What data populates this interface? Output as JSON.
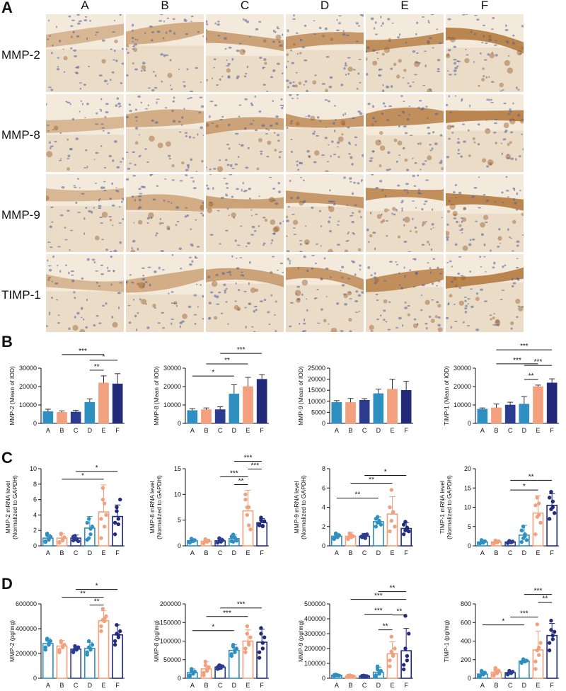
{
  "panels": {
    "A": "A",
    "B": "B",
    "C": "C",
    "D": "D"
  },
  "micrograph_grid": {
    "columns": [
      "A",
      "B",
      "C",
      "D",
      "E",
      "F"
    ],
    "rows": [
      "MMP-2",
      "MMP-8",
      "MMP-9",
      "TIMP-1"
    ]
  },
  "colors": {
    "A": "#2f8fc0",
    "B": "#f2a07d",
    "C": "#2b3c8f",
    "D": "#2f8fc0",
    "E": "#f2a07d",
    "F": "#232a7a",
    "tissue_bg": "#f3eadb",
    "epithelium": "#b57a3f",
    "nuclei": "#4e5f9a"
  },
  "chart_data": [
    {
      "type": "bar",
      "panel": "B",
      "ylabel": "MMP-2 (Mean of IOD)",
      "categories": [
        "A",
        "B",
        "C",
        "D",
        "E",
        "F"
      ],
      "ylim": [
        0,
        30000
      ],
      "yticks": [
        0,
        10000,
        20000,
        30000
      ],
      "values": [
        6500,
        6000,
        6200,
        11500,
        22000,
        21500
      ],
      "errors": [
        1200,
        800,
        900,
        1800,
        3800,
        5500
      ],
      "scatter": false,
      "significance": [
        {
          "from": "D",
          "to": "E",
          "label": "**"
        },
        {
          "from": "D",
          "to": "F",
          "label": "*"
        },
        {
          "from": "B",
          "to": "E",
          "label": "***"
        }
      ]
    },
    {
      "type": "bar",
      "panel": "B",
      "ylabel": "MMP-8 (Mean of IOD)",
      "categories": [
        "A",
        "B",
        "C",
        "D",
        "E",
        "F"
      ],
      "ylim": [
        0,
        30000
      ],
      "yticks": [
        0,
        10000,
        20000,
        30000
      ],
      "values": [
        7000,
        7500,
        7500,
        16000,
        20000,
        24000
      ],
      "errors": [
        1000,
        900,
        1500,
        5000,
        5000,
        2500
      ],
      "scatter": false,
      "significance": [
        {
          "from": "A",
          "to": "D",
          "label": "*"
        },
        {
          "from": "B",
          "to": "E",
          "label": "**"
        },
        {
          "from": "C",
          "to": "F",
          "label": "***"
        }
      ]
    },
    {
      "type": "bar",
      "panel": "B",
      "ylabel": "MMP-9 (Mean of IOD)",
      "categories": [
        "A",
        "B",
        "C",
        "D",
        "E",
        "F"
      ],
      "ylim": [
        0,
        25000
      ],
      "yticks": [
        0,
        5000,
        10000,
        15000,
        20000,
        25000
      ],
      "values": [
        9500,
        9500,
        10500,
        13500,
        15500,
        15000
      ],
      "errors": [
        800,
        1800,
        700,
        2000,
        4500,
        4000
      ],
      "scatter": false,
      "significance": []
    },
    {
      "type": "bar",
      "panel": "B",
      "ylabel": "TIMP-1 (Mean of IOD)",
      "categories": [
        "A",
        "B",
        "C",
        "D",
        "E",
        "F"
      ],
      "ylim": [
        0,
        30000
      ],
      "yticks": [
        0,
        10000,
        20000,
        30000
      ],
      "values": [
        7800,
        8500,
        10000,
        10500,
        20000,
        22000
      ],
      "errors": [
        600,
        2000,
        1500,
        4000,
        800,
        2200
      ],
      "scatter": false,
      "significance": [
        {
          "from": "D",
          "to": "E",
          "label": "**"
        },
        {
          "from": "D",
          "to": "F",
          "label": "***"
        },
        {
          "from": "B",
          "to": "E",
          "label": "***"
        },
        {
          "from": "B",
          "to": "F",
          "label": "***"
        }
      ]
    },
    {
      "type": "bar",
      "panel": "C",
      "ylabel": "MMP-2 mRNA level\n(Normalized to GAPDH)",
      "categories": [
        "A",
        "B",
        "C",
        "D",
        "E",
        "F"
      ],
      "ylim": [
        0,
        10
      ],
      "yticks": [
        0,
        2,
        4,
        6,
        8,
        10
      ],
      "values": [
        1.0,
        1.0,
        1.0,
        2.3,
        4.4,
        3.8
      ],
      "errors": [
        0.5,
        0.6,
        0.4,
        1.5,
        3.5,
        1.5
      ],
      "scatter": true,
      "points": [
        [
          0.6,
          1.4,
          0.9,
          1.2,
          0.5,
          1.6,
          0.8
        ],
        [
          0.5,
          1.5,
          0.7,
          1.1,
          0.4,
          1.6,
          0.9
        ],
        [
          0.7,
          1.3,
          0.9,
          0.6,
          1.2,
          1.0,
          0.8
        ],
        [
          0.8,
          3.5,
          1.5,
          2.5,
          3.0,
          1.0,
          2.2
        ],
        [
          1.0,
          7.5,
          2.5,
          4.0,
          3.5,
          6.0,
          5.5
        ],
        [
          1.5,
          5.0,
          3.5,
          6.0,
          3.0,
          4.5,
          2.8
        ]
      ],
      "significance": [
        {
          "from": "B",
          "to": "E",
          "label": "*"
        },
        {
          "from": "C",
          "to": "F",
          "label": "*"
        }
      ]
    },
    {
      "type": "bar",
      "panel": "C",
      "ylabel": "MMP-8 mRNA level\n(Normalized to GAPDH)",
      "categories": [
        "A",
        "B",
        "C",
        "D",
        "E",
        "F"
      ],
      "ylim": [
        0,
        15
      ],
      "yticks": [
        0,
        5,
        10,
        15
      ],
      "values": [
        1.0,
        0.9,
        1.0,
        1.4,
        6.8,
        4.5
      ],
      "errors": [
        0.4,
        0.4,
        0.5,
        0.7,
        4.0,
        0.8
      ],
      "scatter": true,
      "points": [
        [
          0.7,
          1.3,
          0.9,
          1.1,
          0.6,
          1.4,
          1.0
        ],
        [
          0.5,
          1.3,
          0.8,
          1.0,
          0.6,
          1.2,
          0.9
        ],
        [
          0.7,
          1.4,
          0.8,
          1.1,
          0.6,
          1.5,
          0.9
        ],
        [
          0.9,
          2.2,
          1.5,
          1.0,
          1.8,
          0.8,
          1.6
        ],
        [
          10.0,
          7.5,
          4.0,
          3.2,
          9.0,
          6.0,
          7.5
        ],
        [
          4.0,
          5.5,
          3.8,
          4.8,
          4.2,
          5.0,
          3.9
        ]
      ],
      "significance": [
        {
          "from": "D",
          "to": "E",
          "label": "**"
        },
        {
          "from": "C",
          "to": "E",
          "label": "***"
        },
        {
          "from": "E",
          "to": "F",
          "label": "***"
        },
        {
          "from": "D",
          "to": "F",
          "label": "***"
        }
      ]
    },
    {
      "type": "bar",
      "panel": "C",
      "ylabel": "MMP-9 mRNA level\n(Normalized to GAPDH)",
      "categories": [
        "A",
        "B",
        "C",
        "D",
        "E",
        "F"
      ],
      "ylim": [
        0,
        8
      ],
      "yticks": [
        0,
        2,
        4,
        6,
        8
      ],
      "values": [
        1.0,
        1.0,
        1.0,
        2.5,
        3.3,
        1.8
      ],
      "errors": [
        0.3,
        0.4,
        0.3,
        0.5,
        1.8,
        0.6
      ],
      "scatter": true,
      "points": [
        [
          0.7,
          1.2,
          0.9,
          1.1,
          0.8,
          1.3,
          0.9
        ],
        [
          0.8,
          1.3,
          0.9,
          1.0,
          0.7,
          1.2,
          1.1
        ],
        [
          0.9,
          1.1,
          0.8,
          1.2,
          1.0,
          0.9,
          1.1
        ],
        [
          2.0,
          3.0,
          2.5,
          2.2,
          2.8,
          2.4,
          2.6
        ],
        [
          1.5,
          5.8,
          3.5,
          2.0,
          4.0,
          2.6,
          3.5
        ],
        [
          1.2,
          2.5,
          1.8,
          1.5,
          2.2,
          1.6,
          1.9
        ]
      ],
      "significance": [
        {
          "from": "A",
          "to": "D",
          "label": "**"
        },
        {
          "from": "B",
          "to": "E",
          "label": "**"
        },
        {
          "from": "C",
          "to": "F",
          "label": "*"
        }
      ]
    },
    {
      "type": "bar",
      "panel": "C",
      "ylabel": "TIMP-1 mRNA level\n(Normalized to GAPDH)",
      "categories": [
        "A",
        "B",
        "C",
        "D",
        "E",
        "F"
      ],
      "ylim": [
        0,
        20
      ],
      "yticks": [
        0,
        5,
        10,
        15,
        20
      ],
      "values": [
        1.0,
        1.0,
        1.0,
        2.8,
        8.5,
        10.5
      ],
      "errors": [
        0.5,
        0.5,
        0.4,
        2.5,
        4.5,
        3.0
      ],
      "scatter": true,
      "points": [
        [
          0.6,
          1.4,
          0.8,
          1.2,
          0.7,
          1.5,
          0.9
        ],
        [
          0.7,
          1.3,
          0.9,
          1.2,
          0.6,
          1.4,
          0.9
        ],
        [
          0.8,
          1.2,
          0.9,
          1.1,
          0.7,
          1.3,
          1.0
        ],
        [
          1.0,
          5.0,
          2.5,
          1.5,
          4.0,
          2.0,
          3.0
        ],
        [
          3.0,
          12.5,
          8.0,
          6.0,
          10.5,
          7.5,
          11.0
        ],
        [
          7.0,
          14.0,
          10.0,
          8.5,
          12.5,
          9.5,
          11.5
        ]
      ],
      "significance": [
        {
          "from": "C",
          "to": "E",
          "label": "*"
        },
        {
          "from": "C",
          "to": "F",
          "label": "**"
        }
      ]
    },
    {
      "type": "bar",
      "panel": "D",
      "ylabel": "MMP-2 (pg/mg)",
      "categories": [
        "A",
        "B",
        "C",
        "D",
        "E",
        "F"
      ],
      "ylim": [
        0,
        600000
      ],
      "yticks": [
        0,
        200000,
        400000,
        600000
      ],
      "values": [
        280000,
        260000,
        235000,
        240000,
        465000,
        350000
      ],
      "errors": [
        40000,
        45000,
        25000,
        50000,
        80000,
        80000
      ],
      "scatter": true,
      "points": [
        [
          230000,
          320000,
          270000,
          300000,
          250000,
          310000,
          280000
        ],
        [
          210000,
          300000,
          250000,
          270000,
          230000,
          290000,
          260000
        ],
        [
          210000,
          260000,
          230000,
          250000,
          220000,
          240000,
          245000
        ],
        [
          190000,
          300000,
          230000,
          270000,
          210000,
          250000,
          240000
        ],
        [
          380000,
          560000,
          460000,
          500000,
          420000,
          470000,
          480000
        ],
        [
          270000,
          430000,
          330000,
          380000,
          300000,
          360000,
          350000
        ]
      ],
      "significance": [
        {
          "from": "D",
          "to": "E",
          "label": "**"
        },
        {
          "from": "B",
          "to": "E",
          "label": "**"
        },
        {
          "from": "C",
          "to": "F",
          "label": "*"
        }
      ]
    },
    {
      "type": "bar",
      "panel": "D",
      "ylabel": "MMP-8 (pg/mg)",
      "categories": [
        "A",
        "B",
        "C",
        "D",
        "E",
        "F"
      ],
      "ylim": [
        0,
        200000
      ],
      "yticks": [
        0,
        50000,
        100000,
        150000,
        200000
      ],
      "values": [
        15000,
        25000,
        30000,
        75000,
        100000,
        97000
      ],
      "errors": [
        10000,
        20000,
        5000,
        15000,
        30000,
        35000
      ],
      "scatter": true,
      "points": [
        [
          5000,
          25000,
          12000,
          18000,
          8000,
          20000,
          15000
        ],
        [
          8000,
          45000,
          20000,
          30000,
          15000,
          35000,
          25000
        ],
        [
          25000,
          35000,
          28000,
          32000,
          30000,
          27000,
          33000
        ],
        [
          60000,
          90000,
          70000,
          80000,
          65000,
          85000,
          75000
        ],
        [
          70000,
          140000,
          90000,
          110000,
          80000,
          120000,
          95000
        ],
        [
          55000,
          135000,
          80000,
          110000,
          70000,
          120000,
          95000
        ]
      ],
      "significance": [
        {
          "from": "A",
          "to": "D",
          "label": "*"
        },
        {
          "from": "B",
          "to": "E",
          "label": "***"
        },
        {
          "from": "C",
          "to": "F",
          "label": "***"
        }
      ]
    },
    {
      "type": "bar",
      "panel": "D",
      "ylabel": "MMP-9 (pg/mg)",
      "categories": [
        "A",
        "B",
        "C",
        "D",
        "E",
        "F"
      ],
      "ylim": [
        0,
        500000
      ],
      "yticks": [
        0,
        100000,
        200000,
        300000,
        400000,
        500000
      ],
      "values": [
        20000,
        15000,
        15000,
        40000,
        165000,
        185000
      ],
      "errors": [
        5000,
        5000,
        5000,
        35000,
        80000,
        150000
      ],
      "scatter": true,
      "points": [
        [
          15000,
          25000,
          20000,
          18000,
          22000,
          20000,
          19000
        ],
        [
          10000,
          20000,
          15000,
          14000,
          17000,
          13000,
          16000
        ],
        [
          12000,
          18000,
          15000,
          14000,
          16000,
          15000,
          13000
        ],
        [
          10000,
          80000,
          30000,
          50000,
          20000,
          60000,
          40000
        ],
        [
          80000,
          280000,
          150000,
          200000,
          120000,
          180000,
          160000
        ],
        [
          60000,
          420000,
          120000,
          300000,
          90000,
          200000,
          150000
        ]
      ],
      "significance": [
        {
          "from": "D",
          "to": "E",
          "label": "**"
        },
        {
          "from": "E",
          "to": "F",
          "label": "**"
        },
        {
          "from": "C",
          "to": "E",
          "label": "***"
        },
        {
          "from": "B",
          "to": "F",
          "label": "***"
        },
        {
          "from": "D",
          "to": "F",
          "label": "**"
        }
      ]
    },
    {
      "type": "bar",
      "panel": "D",
      "ylabel": "TIMP-1 (pg/mg)",
      "categories": [
        "A",
        "B",
        "C",
        "D",
        "E",
        "F"
      ],
      "ylim": [
        0,
        800
      ],
      "yticks": [
        0,
        200,
        400,
        600,
        800
      ],
      "values": [
        45,
        65,
        60,
        185,
        305,
        460
      ],
      "errors": [
        30,
        35,
        20,
        20,
        200,
        130
      ],
      "scatter": true,
      "points": [
        [
          20,
          80,
          40,
          60,
          30,
          70,
          45
        ],
        [
          30,
          110,
          55,
          80,
          40,
          90,
          60
        ],
        [
          40,
          80,
          55,
          70,
          50,
          65,
          60
        ],
        [
          165,
          205,
          180,
          190,
          175,
          200,
          185
        ],
        [
          100,
          580,
          250,
          380,
          180,
          300,
          330
        ],
        [
          300,
          620,
          420,
          500,
          380,
          520,
          460
        ]
      ],
      "significance": [
        {
          "from": "A",
          "to": "D",
          "label": "*"
        },
        {
          "from": "C",
          "to": "E",
          "label": "***"
        },
        {
          "from": "E",
          "to": "F",
          "label": "**"
        },
        {
          "from": "D",
          "to": "F",
          "label": "***"
        }
      ]
    }
  ]
}
